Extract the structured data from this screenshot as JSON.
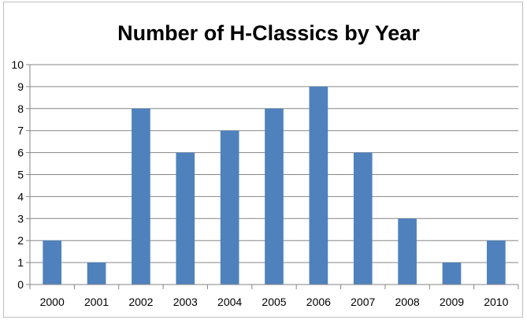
{
  "chart_data": {
    "type": "bar",
    "title": "Number of H-Classics by Year",
    "xlabel": "",
    "ylabel": "",
    "categories": [
      "2000",
      "2001",
      "2002",
      "2003",
      "2004",
      "2005",
      "2006",
      "2007",
      "2008",
      "2009",
      "2010"
    ],
    "values": [
      2,
      1,
      8,
      6,
      7,
      8,
      9,
      6,
      3,
      1,
      2
    ],
    "ylim": [
      0,
      10
    ],
    "yticks": [
      0,
      1,
      2,
      3,
      4,
      5,
      6,
      7,
      8,
      9,
      10
    ],
    "grid": true,
    "legend": "none",
    "bar_color": "#4f81bd"
  }
}
